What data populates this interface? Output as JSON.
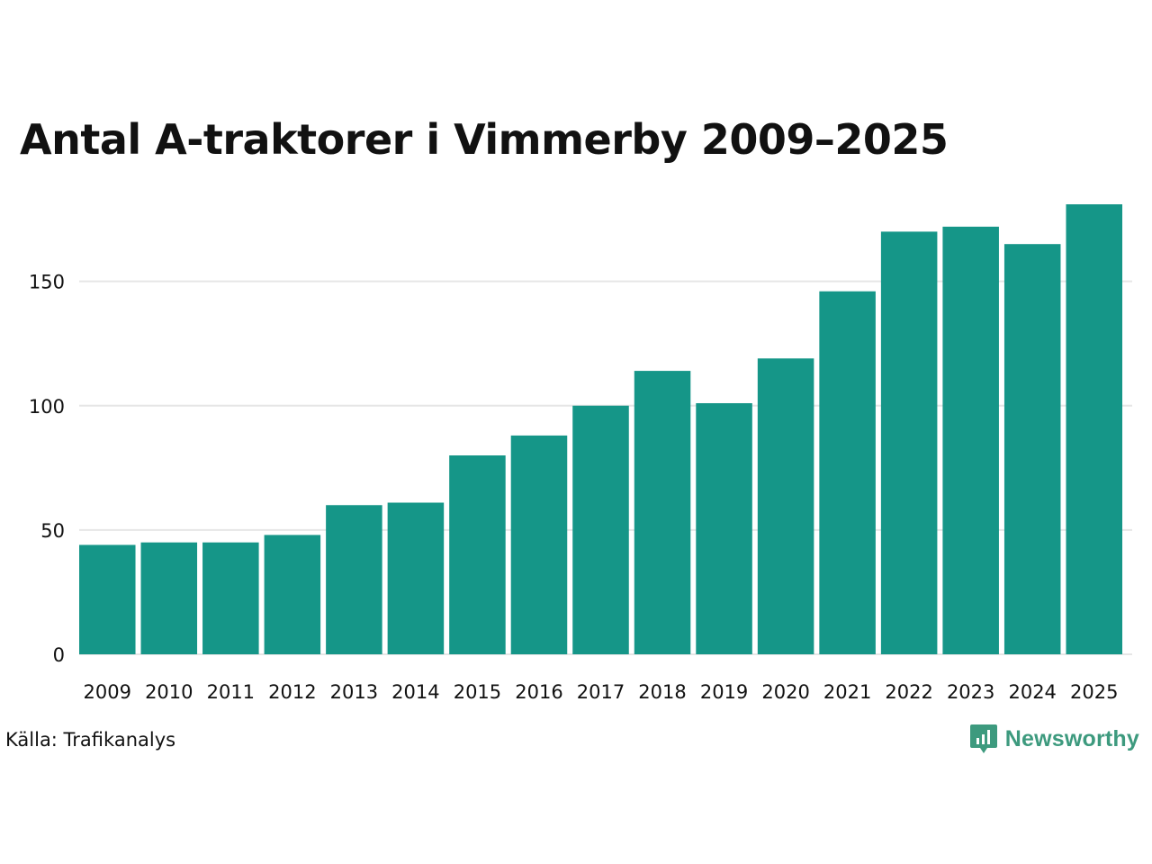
{
  "chart_data": {
    "type": "bar",
    "title": "Antal A-traktorer i Vimmerby 2009–2025",
    "categories": [
      "2009",
      "2010",
      "2011",
      "2012",
      "2013",
      "2014",
      "2015",
      "2016",
      "2017",
      "2018",
      "2019",
      "2020",
      "2021",
      "2022",
      "2023",
      "2024",
      "2025"
    ],
    "values": [
      44,
      45,
      45,
      48,
      60,
      61,
      80,
      88,
      100,
      114,
      101,
      119,
      146,
      170,
      172,
      165,
      181
    ],
    "ylim": [
      0,
      181
    ],
    "yticks": [
      0,
      50,
      100,
      150
    ],
    "xlabel": "",
    "ylabel": "",
    "grid": true,
    "bar_color": "#159688",
    "grid_color": "#e6e6e6"
  },
  "footer": {
    "source": "Källa: Trafikanalys",
    "brand": "Newsworthy",
    "brand_icon": "newsworthy-logo-icon",
    "brand_color": "#3d9a7e"
  }
}
